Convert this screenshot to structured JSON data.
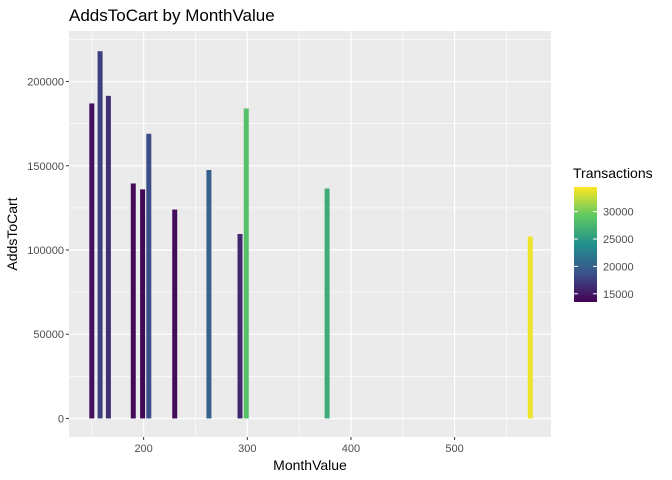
{
  "chart_data": {
    "type": "bar",
    "title": "AddsToCart by MonthValue",
    "xlabel": "MonthValue",
    "ylabel": "AddsToCart",
    "xlim": [
      128,
      593
    ],
    "ylim": [
      -11000,
      230000
    ],
    "x_ticks": [
      {
        "value": 200,
        "label": "200"
      },
      {
        "value": 300,
        "label": "300"
      },
      {
        "value": 400,
        "label": "400"
      },
      {
        "value": 500,
        "label": "500"
      }
    ],
    "y_ticks": [
      {
        "value": 0,
        "label": "0"
      },
      {
        "value": 50000,
        "label": "50000"
      },
      {
        "value": 100000,
        "label": "100000"
      },
      {
        "value": 150000,
        "label": "150000"
      },
      {
        "value": 200000,
        "label": "200000"
      }
    ],
    "grid": true,
    "bars": [
      {
        "x": 150,
        "y": 187000,
        "transactions": 14500
      },
      {
        "x": 158,
        "y": 218000,
        "transactions": 17500
      },
      {
        "x": 166,
        "y": 191500,
        "transactions": 16500
      },
      {
        "x": 190,
        "y": 139500,
        "transactions": 14200
      },
      {
        "x": 199,
        "y": 136000,
        "transactions": 14000
      },
      {
        "x": 205,
        "y": 169000,
        "transactions": 18500
      },
      {
        "x": 230,
        "y": 124000,
        "transactions": 14300
      },
      {
        "x": 263,
        "y": 147500,
        "transactions": 20000
      },
      {
        "x": 293,
        "y": 109500,
        "transactions": 16000
      },
      {
        "x": 299,
        "y": 184000,
        "transactions": 28500
      },
      {
        "x": 377,
        "y": 136500,
        "transactions": 26500
      },
      {
        "x": 573,
        "y": 108000,
        "transactions": 34000
      }
    ],
    "legend": {
      "title": "Transactions",
      "placement": "right",
      "range": [
        13500,
        34500
      ],
      "ticks": [
        {
          "value": 15000,
          "label": "15000"
        },
        {
          "value": 20000,
          "label": "20000"
        },
        {
          "value": 25000,
          "label": "25000"
        },
        {
          "value": 30000,
          "label": "30000"
        }
      ]
    },
    "colors": {
      "panel": "#EBEBEB",
      "grid": "#FFFFFF",
      "scale": [
        "#440154",
        "#3B528B",
        "#21908C",
        "#5DC863",
        "#FDE725"
      ]
    }
  }
}
